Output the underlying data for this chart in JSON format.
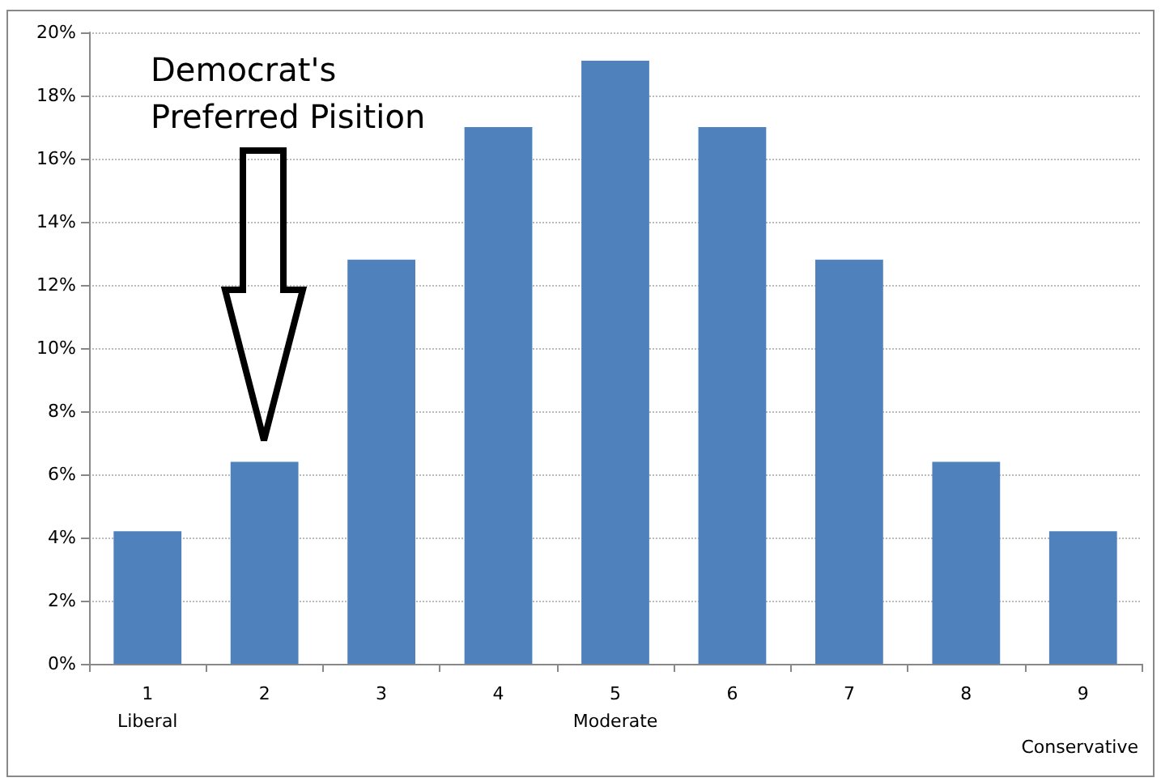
{
  "chart_data": {
    "type": "bar",
    "categories": [
      "1\nLiberal",
      "2",
      "3",
      "4",
      "5\nModerate",
      "6",
      "7",
      "8",
      "9"
    ],
    "values": [
      4.2,
      6.4,
      12.8,
      17.0,
      19.1,
      17.0,
      12.8,
      6.4,
      4.2
    ],
    "color": "#4f81bd",
    "xlabel": "Conservative",
    "ylim": [
      0,
      20
    ],
    "yticks": [
      {
        "value": 0,
        "label": "0%"
      },
      {
        "value": 2,
        "label": "2%"
      },
      {
        "value": 4,
        "label": "4%"
      },
      {
        "value": 6,
        "label": "6%"
      },
      {
        "value": 8,
        "label": "8%"
      },
      {
        "value": 10,
        "label": "10%"
      },
      {
        "value": 12,
        "label": "12%"
      },
      {
        "value": 14,
        "label": "14%"
      },
      {
        "value": 16,
        "label": "16%"
      },
      {
        "value": 18,
        "label": "18%"
      },
      {
        "value": 20,
        "label": "20%"
      }
    ],
    "grid": "y",
    "annotations": [
      "Democrat's\nPreferred Pisition"
    ]
  }
}
